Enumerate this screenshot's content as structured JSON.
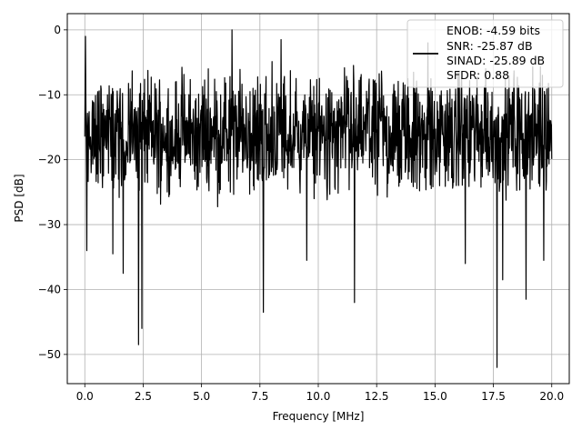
{
  "chart_data": {
    "type": "line",
    "xlabel": "Frequency [MHz]",
    "ylabel": "PSD [dB]",
    "xlim": [
      -0.75,
      20.75
    ],
    "ylim": [
      -54.5,
      2.5
    ],
    "xticks": [
      0.0,
      2.5,
      5.0,
      7.5,
      10.0,
      12.5,
      15.0,
      17.5,
      20.0
    ],
    "xtick_labels": [
      "0.0",
      "2.5",
      "5.0",
      "7.5",
      "10.0",
      "12.5",
      "15.0",
      "17.5",
      "20.0"
    ],
    "yticks": [
      0,
      -10,
      -20,
      -30,
      -40,
      -50
    ],
    "ytick_labels": [
      "0",
      "−10",
      "−20",
      "−30",
      "−40",
      "−50"
    ],
    "grid": true,
    "legend_position": "top-right",
    "legend_lines": [
      "ENOB: -4.59 bits",
      "SNR: -25.87 dB",
      "SINAD: -25.89 dB",
      "SFDR: 0.88"
    ],
    "series": [
      {
        "color": "#000000",
        "x_range": [
          0,
          20
        ],
        "typical_band_db": [
          -27,
          -5
        ],
        "peaks": [
          {
            "x": 0.03,
            "y": -1.0
          },
          {
            "x": 6.3,
            "y": 0.0
          },
          {
            "x": 8.4,
            "y": -1.5
          },
          {
            "x": 14.7,
            "y": -2.0
          }
        ],
        "dips": [
          {
            "x": 0.08,
            "y": -34.0
          },
          {
            "x": 1.2,
            "y": -34.5
          },
          {
            "x": 1.65,
            "y": -37.5
          },
          {
            "x": 2.3,
            "y": -48.5
          },
          {
            "x": 2.45,
            "y": -46.0
          },
          {
            "x": 7.65,
            "y": -43.5
          },
          {
            "x": 9.5,
            "y": -35.5
          },
          {
            "x": 11.55,
            "y": -42.0
          },
          {
            "x": 16.3,
            "y": -36.0
          },
          {
            "x": 17.65,
            "y": -52.0
          },
          {
            "x": 17.9,
            "y": -38.5
          },
          {
            "x": 18.9,
            "y": -41.5
          },
          {
            "x": 19.65,
            "y": -35.5
          }
        ]
      }
    ]
  }
}
